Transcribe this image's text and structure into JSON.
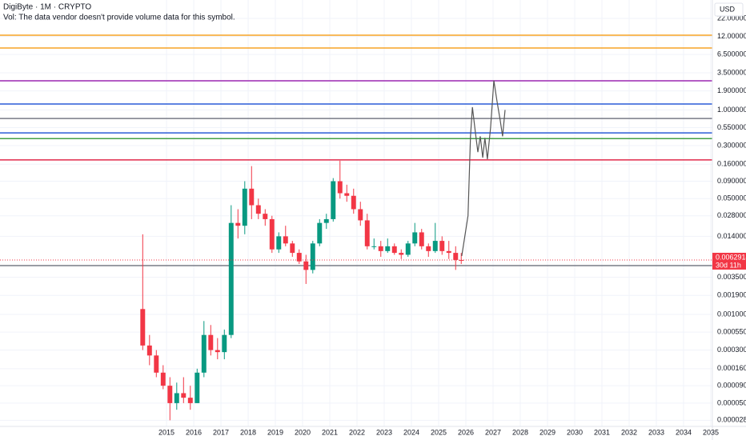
{
  "chart_data": {
    "type": "candlestick",
    "title": "DigiByte · 1M · CRYPTO",
    "subtitle": "Vol: The data vendor doesn't provide volume data for this symbol.",
    "currency": "USD",
    "log_scale": true,
    "grid": true,
    "up_color": "#089981",
    "down_color": "#f23645",
    "xlim": [
      2008.88,
      2035.06
    ],
    "xticks": [
      2015,
      2016,
      2017,
      2018,
      2019,
      2020,
      2021,
      2022,
      2023,
      2024,
      2025,
      2026,
      2027,
      2028,
      2029,
      2030,
      2031,
      2032,
      2033,
      2034,
      2035
    ],
    "ylim": [
      2.1e-05,
      41
    ],
    "yticks": [
      {
        "value": 22,
        "label": "22.0000000"
      },
      {
        "value": 12,
        "label": "12.0000000"
      },
      {
        "value": 6.5,
        "label": "6.5000000"
      },
      {
        "value": 3.5,
        "label": "3.5000000"
      },
      {
        "value": 1.9,
        "label": "1.9000000"
      },
      {
        "value": 1,
        "label": "1.0000000"
      },
      {
        "value": 0.55,
        "label": "0.5500000"
      },
      {
        "value": 0.3,
        "label": "0.3000000"
      },
      {
        "value": 0.16,
        "label": "0.1600000"
      },
      {
        "value": 0.09,
        "label": "0.0900000"
      },
      {
        "value": 0.05,
        "label": "0.0500000"
      },
      {
        "value": 0.028,
        "label": "0.0280000"
      },
      {
        "value": 0.014,
        "label": "0.0140000"
      },
      {
        "value": 0.0035,
        "label": "0.0035000"
      },
      {
        "value": 0.0019,
        "label": "0.0019000"
      },
      {
        "value": 0.001,
        "label": "0.0010000"
      },
      {
        "value": 0.00055,
        "label": "0.0005500"
      },
      {
        "value": 0.0003,
        "label": "0.0003000"
      },
      {
        "value": 0.00016,
        "label": "0.0001600"
      },
      {
        "value": 9e-05,
        "label": "0.0000900"
      },
      {
        "value": 5e-05,
        "label": "0.0000500"
      },
      {
        "value": 2.8e-05,
        "label": "0.0000280"
      }
    ],
    "x": [
      2014.125,
      2014.375,
      2014.625,
      2014.875,
      2015.125,
      2015.375,
      2015.625,
      2015.875,
      2016.125,
      2016.375,
      2016.625,
      2016.875,
      2017.125,
      2017.375,
      2017.625,
      2017.875,
      2018.125,
      2018.375,
      2018.625,
      2018.875,
      2019.125,
      2019.375,
      2019.625,
      2019.875,
      2020.125,
      2020.375,
      2020.625,
      2020.875,
      2021.125,
      2021.375,
      2021.625,
      2021.875,
      2022.125,
      2022.375,
      2022.625,
      2022.875,
      2023.125,
      2023.375,
      2023.625,
      2023.875,
      2024.125,
      2024.375,
      2024.625,
      2024.875,
      2025.125,
      2025.375,
      2025.625,
      2025.83
    ],
    "open": [
      0.0012,
      0.00035,
      0.00025,
      0.00014,
      9e-05,
      5e-05,
      7e-05,
      6e-05,
      5e-05,
      0.00014,
      0.0005,
      0.0003,
      0.00028,
      0.0005,
      0.022,
      0.02,
      0.07,
      0.04,
      0.03,
      0.025,
      0.009,
      0.014,
      0.011,
      0.008,
      0.006,
      0.0045,
      0.011,
      0.022,
      0.025,
      0.09,
      0.06,
      0.055,
      0.035,
      0.024,
      0.01,
      0.01,
      0.0085,
      0.01,
      0.008,
      0.0075,
      0.011,
      0.016,
      0.01,
      0.0085,
      0.012,
      0.0085,
      0.008,
      0.0063
    ],
    "high": [
      0.015,
      0.0005,
      0.0003,
      0.00018,
      0.00012,
      0.0001,
      0.00012,
      9e-05,
      0.00016,
      0.0008,
      0.0007,
      0.00045,
      0.0006,
      0.04,
      0.035,
      0.09,
      0.15,
      0.05,
      0.035,
      0.028,
      0.016,
      0.02,
      0.012,
      0.009,
      0.0075,
      0.012,
      0.025,
      0.03,
      0.1,
      0.18,
      0.08,
      0.07,
      0.045,
      0.03,
      0.013,
      0.012,
      0.013,
      0.011,
      0.009,
      0.012,
      0.022,
      0.018,
      0.011,
      0.022,
      0.014,
      0.012,
      0.01,
      0.008
    ],
    "low": [
      0.0003,
      0.00018,
      0.00012,
      8e-05,
      2.8e-05,
      4e-05,
      5e-05,
      4e-05,
      5e-05,
      0.00012,
      0.00025,
      0.00022,
      0.00022,
      0.00045,
      0.013,
      0.015,
      0.025,
      0.025,
      0.02,
      0.008,
      0.008,
      0.01,
      0.007,
      0.0055,
      0.0028,
      0.004,
      0.01,
      0.018,
      0.023,
      0.05,
      0.045,
      0.03,
      0.02,
      0.009,
      0.009,
      0.007,
      0.008,
      0.0075,
      0.0065,
      0.007,
      0.01,
      0.009,
      0.007,
      0.008,
      0.0075,
      0.0065,
      0.0045,
      0.0055
    ],
    "close": [
      0.00035,
      0.00025,
      0.00014,
      9e-05,
      5e-05,
      7e-05,
      6e-05,
      5e-05,
      0.00014,
      0.0005,
      0.0003,
      0.00028,
      0.0005,
      0.022,
      0.02,
      0.07,
      0.04,
      0.03,
      0.025,
      0.009,
      0.014,
      0.011,
      0.008,
      0.006,
      0.0045,
      0.011,
      0.022,
      0.025,
      0.09,
      0.06,
      0.055,
      0.035,
      0.024,
      0.01,
      0.01,
      0.0085,
      0.01,
      0.008,
      0.0075,
      0.011,
      0.016,
      0.01,
      0.0085,
      0.012,
      0.0085,
      0.008,
      0.0063,
      0.0062914
    ],
    "levels": [
      {
        "value": 12.5,
        "color": "#f7a325"
      },
      {
        "value": 8.1,
        "color": "#f7a325"
      },
      {
        "value": 2.68,
        "color": "#9c27b0"
      },
      {
        "value": 1.22,
        "color": "#2a5bd7"
      },
      {
        "value": 0.75,
        "color": "#787b86"
      },
      {
        "value": 0.46,
        "color": "#2a5bd7"
      },
      {
        "value": 0.38,
        "color": "#43a047"
      },
      {
        "value": 0.185,
        "color": "#e0294a"
      },
      {
        "value": 0.0052,
        "color": "#787b86"
      }
    ],
    "projection": {
      "color": "#555555",
      "x": [
        2025.85,
        2026.08,
        2026.17,
        2026.24,
        2026.35,
        2026.44,
        2026.53,
        2026.62,
        2026.7,
        2026.79,
        2026.91,
        2027.03,
        2027.15,
        2027.26,
        2027.35,
        2027.44
      ],
      "values": [
        0.0072,
        0.028,
        0.41,
        1.1,
        0.47,
        0.24,
        0.41,
        0.2,
        0.39,
        0.19,
        0.55,
        2.7,
        1.3,
        0.72,
        0.41,
        1.0
      ]
    },
    "last_price": {
      "value": 0.0062914,
      "countdown": "30d 11h",
      "color": "#f23645"
    }
  }
}
